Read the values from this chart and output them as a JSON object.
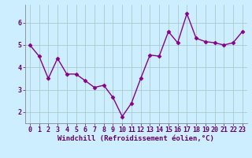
{
  "x": [
    0,
    1,
    2,
    3,
    4,
    5,
    6,
    7,
    8,
    9,
    10,
    11,
    12,
    13,
    14,
    15,
    16,
    17,
    18,
    19,
    20,
    21,
    22,
    23
  ],
  "y": [
    5.0,
    4.5,
    3.5,
    4.4,
    3.7,
    3.7,
    3.4,
    3.1,
    3.2,
    2.65,
    1.8,
    2.4,
    3.5,
    4.55,
    4.5,
    5.6,
    5.1,
    6.4,
    5.3,
    5.15,
    5.1,
    5.0,
    5.1,
    5.6
  ],
  "line_color": "#880088",
  "marker": "D",
  "marker_size": 2.5,
  "linewidth": 1.0,
  "xlabel": "Windchill (Refroidissement éolien,°C)",
  "xlim": [
    -0.5,
    23.5
  ],
  "ylim": [
    1.5,
    6.8
  ],
  "yticks": [
    2,
    3,
    4,
    5,
    6
  ],
  "xticks": [
    0,
    1,
    2,
    3,
    4,
    5,
    6,
    7,
    8,
    9,
    10,
    11,
    12,
    13,
    14,
    15,
    16,
    17,
    18,
    19,
    20,
    21,
    22,
    23
  ],
  "xtick_labels": [
    "0",
    "1",
    "2",
    "3",
    "4",
    "5",
    "6",
    "7",
    "8",
    "9",
    "10",
    "11",
    "12",
    "13",
    "14",
    "15",
    "16",
    "17",
    "18",
    "19",
    "20",
    "21",
    "22",
    "23"
  ],
  "background_color": "#cceeff",
  "grid_color": "#aacccc",
  "tick_color": "#660066",
  "tick_fontsize": 6.0,
  "xlabel_fontsize": 6.5,
  "spine_color": "#888888"
}
